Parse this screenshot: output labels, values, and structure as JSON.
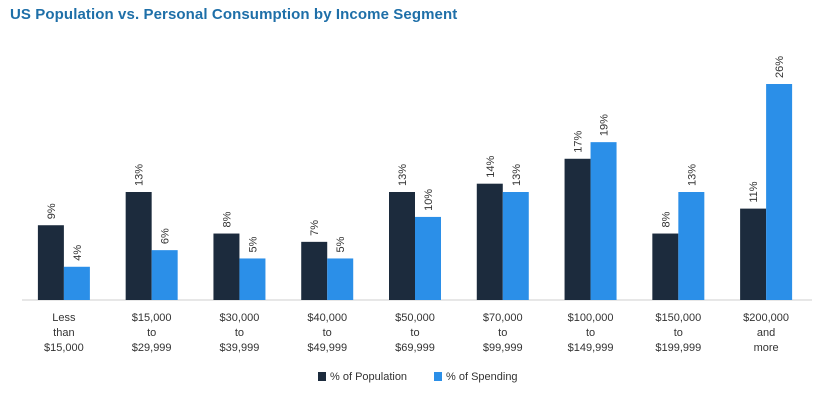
{
  "chart_data": {
    "type": "bar",
    "title": "US Population vs. Personal Consumption by Income Segment",
    "xlabel": "",
    "ylabel": "",
    "ylim": [
      0,
      26
    ],
    "grid": false,
    "legend_position": "bottom-center",
    "categories": [
      [
        "Less",
        "than",
        "$15,000"
      ],
      [
        "$15,000",
        "to",
        "$29,999"
      ],
      [
        "$30,000",
        "to",
        "$39,999"
      ],
      [
        "$40,000",
        "to",
        "$49,999"
      ],
      [
        "$50,000",
        "to",
        "$69,999"
      ],
      [
        "$70,000",
        "to",
        "$99,999"
      ],
      [
        "$100,000",
        "to",
        "$149,999"
      ],
      [
        "$150,000",
        "to",
        "$199,999"
      ],
      [
        "$200,000",
        "and",
        "more"
      ]
    ],
    "series": [
      {
        "name": "% of Population",
        "color": "#1c2b3d",
        "values": [
          9,
          13,
          8,
          7,
          13,
          14,
          17,
          8,
          11
        ]
      },
      {
        "name": "% of Spending",
        "color": "#2b8fe8",
        "values": [
          4,
          6,
          5,
          5,
          10,
          13,
          19,
          13,
          26
        ]
      }
    ]
  }
}
